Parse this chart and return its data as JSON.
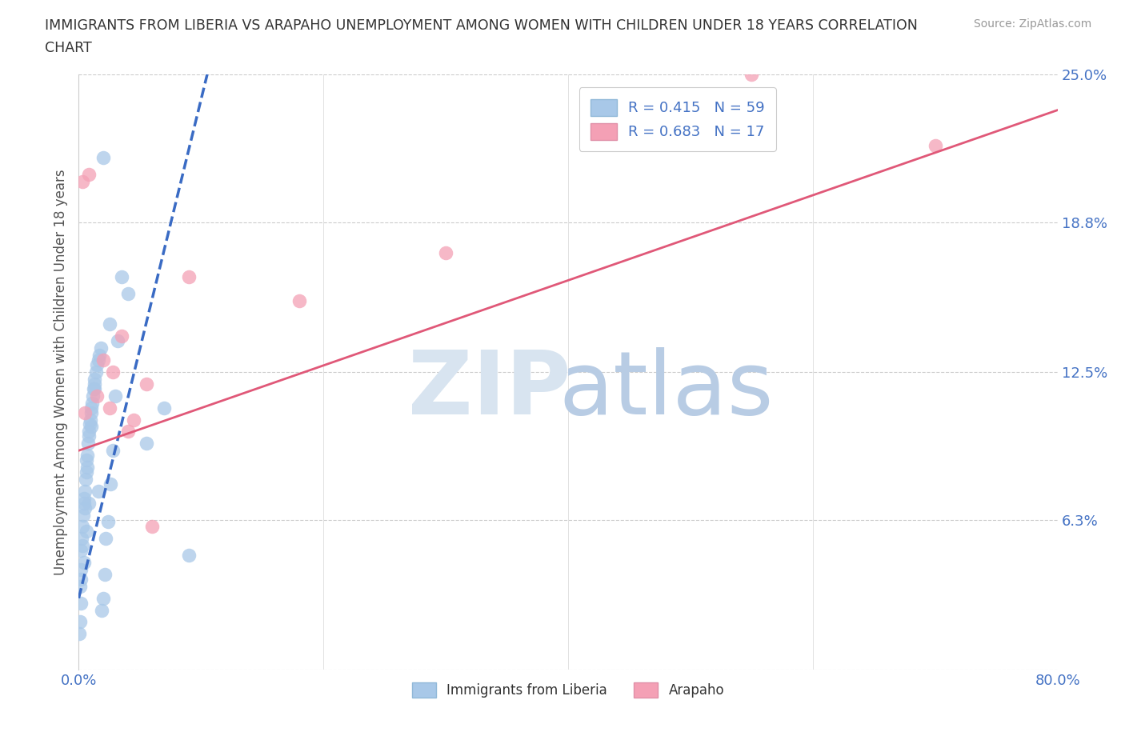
{
  "title_line1": "IMMIGRANTS FROM LIBERIA VS ARAPAHO UNEMPLOYMENT AMONG WOMEN WITH CHILDREN UNDER 18 YEARS CORRELATION",
  "title_line2": "CHART",
  "source": "Source: ZipAtlas.com",
  "ylabel": "Unemployment Among Women with Children Under 18 years",
  "legend_label1": "Immigrants from Liberia",
  "legend_label2": "Arapaho",
  "R1": 0.415,
  "N1": 59,
  "R2": 0.683,
  "N2": 17,
  "color1": "#a8c8e8",
  "color2": "#f4a0b5",
  "trendline1_color": "#3a6bc4",
  "trendline2_color": "#e05878",
  "xmin": 0.0,
  "xmax": 80.0,
  "ymin": 0.0,
  "ymax": 25.0,
  "yticks": [
    0.0,
    6.3,
    12.5,
    18.8,
    25.0
  ],
  "ytick_labels": [
    "",
    "6.3%",
    "12.5%",
    "18.8%",
    "25.0%"
  ],
  "blue_scatter_x": [
    0.1,
    0.15,
    0.2,
    0.25,
    0.3,
    0.35,
    0.4,
    0.45,
    0.5,
    0.55,
    0.6,
    0.65,
    0.7,
    0.75,
    0.8,
    0.85,
    0.9,
    0.95,
    1.0,
    1.05,
    1.1,
    1.15,
    1.2,
    1.25,
    1.3,
    1.4,
    1.5,
    1.6,
    1.7,
    1.8,
    1.9,
    2.0,
    2.1,
    2.2,
    2.4,
    2.6,
    2.8,
    3.0,
    3.2,
    3.5,
    0.05,
    0.1,
    0.15,
    0.2,
    0.3,
    0.5,
    0.7,
    1.0,
    1.3,
    1.6,
    0.4,
    0.6,
    0.8,
    2.5,
    4.0,
    5.5,
    7.0,
    2.0,
    9.0
  ],
  "blue_scatter_y": [
    3.5,
    4.2,
    5.0,
    5.5,
    6.0,
    6.5,
    7.0,
    7.2,
    7.5,
    8.0,
    8.3,
    8.8,
    9.0,
    9.5,
    9.8,
    10.0,
    10.3,
    10.5,
    10.8,
    11.0,
    11.2,
    11.5,
    11.8,
    12.0,
    12.2,
    12.5,
    12.8,
    13.0,
    13.2,
    13.5,
    2.5,
    3.0,
    4.0,
    5.5,
    6.2,
    7.8,
    9.2,
    11.5,
    13.8,
    16.5,
    1.5,
    2.0,
    2.8,
    3.8,
    5.2,
    6.8,
    8.5,
    10.2,
    11.8,
    7.5,
    4.5,
    5.8,
    7.0,
    14.5,
    15.8,
    9.5,
    11.0,
    21.5,
    4.8
  ],
  "pink_scatter_x": [
    0.3,
    0.8,
    1.5,
    2.0,
    2.8,
    3.5,
    4.5,
    5.5,
    6.0,
    9.0,
    18.0,
    30.0,
    55.0,
    70.0,
    0.5,
    4.0,
    2.5
  ],
  "pink_scatter_y": [
    20.5,
    20.8,
    11.5,
    13.0,
    12.5,
    14.0,
    10.5,
    12.0,
    6.0,
    16.5,
    15.5,
    17.5,
    25.0,
    22.0,
    10.8,
    10.0,
    11.0
  ],
  "trendline1_x": [
    0.0,
    10.5
  ],
  "trendline1_y": [
    3.0,
    25.0
  ],
  "trendline2_x": [
    0.0,
    80.0
  ],
  "trendline2_y": [
    9.2,
    23.5
  ]
}
